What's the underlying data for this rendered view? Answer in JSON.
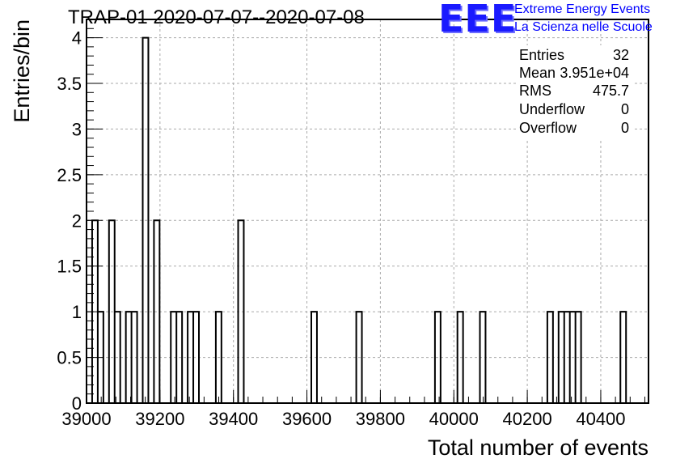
{
  "chart_data": {
    "type": "bar",
    "title": "TRAP-01 2020-07-07--2020-07-08",
    "xlabel": "Total number of events",
    "ylabel": "Entries/bin",
    "xlim": [
      39000,
      40530
    ],
    "ylim": [
      0,
      4.2
    ],
    "x_ticks": [
      "39000",
      "39200",
      "39400",
      "39600",
      "39800",
      "40000",
      "40200",
      "40400"
    ],
    "y_ticks": [
      "0",
      "0.5",
      "1",
      "1.5",
      "2",
      "2.5",
      "3",
      "3.5",
      "4"
    ],
    "grid": true,
    "bin_width": 15.3,
    "bins": [
      {
        "x": 39015.3,
        "value": 2
      },
      {
        "x": 39030.6,
        "value": 1
      },
      {
        "x": 39061.2,
        "value": 2
      },
      {
        "x": 39076.5,
        "value": 1
      },
      {
        "x": 39107.1,
        "value": 1
      },
      {
        "x": 39122.4,
        "value": 1
      },
      {
        "x": 39153.0,
        "value": 4
      },
      {
        "x": 39183.6,
        "value": 2
      },
      {
        "x": 39229.5,
        "value": 1
      },
      {
        "x": 39244.8,
        "value": 1
      },
      {
        "x": 39275.4,
        "value": 1
      },
      {
        "x": 39290.7,
        "value": 1
      },
      {
        "x": 39352.0,
        "value": 1
      },
      {
        "x": 39412.8,
        "value": 2
      },
      {
        "x": 39612.0,
        "value": 1
      },
      {
        "x": 39734.4,
        "value": 1
      },
      {
        "x": 39948.6,
        "value": 1
      },
      {
        "x": 40009.8,
        "value": 1
      },
      {
        "x": 40071.0,
        "value": 1
      },
      {
        "x": 40254.6,
        "value": 1
      },
      {
        "x": 40285.2,
        "value": 1
      },
      {
        "x": 40300.5,
        "value": 1
      },
      {
        "x": 40315.8,
        "value": 1
      },
      {
        "x": 40331.1,
        "value": 1
      },
      {
        "x": 40453.5,
        "value": 1
      }
    ]
  },
  "logo": {
    "text": "EEE",
    "line1": "Extreme Energy Events",
    "line2": "La Scienza nelle Scuole"
  },
  "stats": [
    {
      "label": "Entries",
      "value": "32"
    },
    {
      "label": "Mean",
      "value": "3.951e+04"
    },
    {
      "label": "RMS",
      "value": "475.7"
    },
    {
      "label": "Underflow",
      "value": "0"
    },
    {
      "label": "Overflow",
      "value": "0"
    }
  ]
}
